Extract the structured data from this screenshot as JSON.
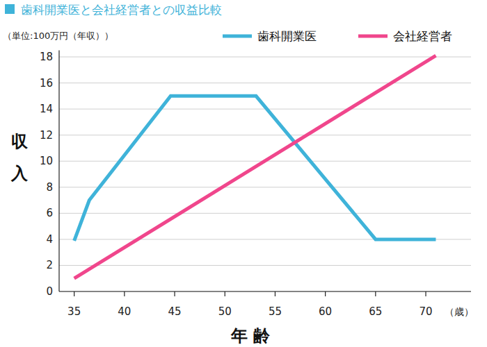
{
  "chart_data": {
    "type": "line",
    "title": "歯科開業医と会社経営者との収益比較",
    "y_unit": "（単位:100万円（年収））",
    "y_label": "収入",
    "x_label": "年 齢",
    "x_unit": "（歳）",
    "xlim": [
      33.5,
      74.5
    ],
    "xticks": [
      35,
      40,
      45,
      50,
      55,
      60,
      65,
      70
    ],
    "ylim": [
      0,
      18.5
    ],
    "yticks": [
      0,
      2,
      4,
      6,
      8,
      10,
      12,
      14,
      16,
      18
    ],
    "grid": true,
    "legend": "top-right",
    "series": [
      {
        "name": "歯科開業医",
        "color": "#3fb3d9",
        "x": [
          35,
          36.5,
          44.6,
          53.1,
          65,
          71
        ],
        "values": [
          3.9,
          7,
          15,
          15,
          4,
          4
        ]
      },
      {
        "name": "会社経営者",
        "color": "#f0468c",
        "x": [
          35,
          71
        ],
        "values": [
          1.0,
          18.1
        ]
      }
    ]
  }
}
